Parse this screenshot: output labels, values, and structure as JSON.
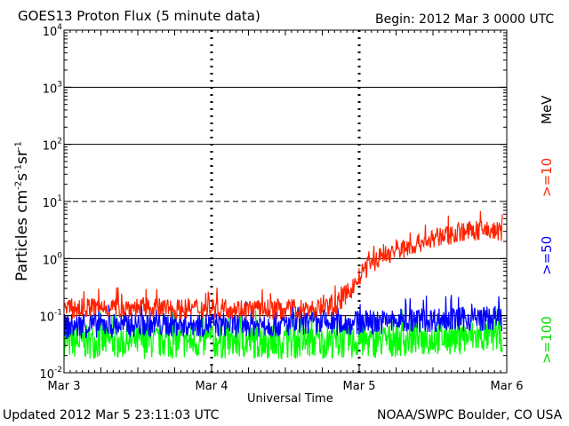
{
  "header": {
    "title": "GOES13 Proton Flux (5 minute data)",
    "begin": "Begin: 2012 Mar 3 0000 UTC"
  },
  "footer": {
    "updated": "Updated 2012 Mar  5 23:11:03 UTC",
    "credit": "NOAA/SWPC Boulder, CO USA"
  },
  "chart_data": {
    "type": "line",
    "xlabel": "Universal Time",
    "ylabel_parts": [
      "Particles cm",
      "-2",
      "s",
      "-1",
      "sr",
      "-1"
    ],
    "x_ticks": [
      "Mar 3",
      "Mar 4",
      "Mar 5",
      "Mar 6"
    ],
    "y_ticks": [
      {
        "base": "10",
        "exp": "-2"
      },
      {
        "base": "10",
        "exp": "-1"
      },
      {
        "base": "10",
        "exp": "0"
      },
      {
        "base": "10",
        "exp": "1"
      },
      {
        "base": "10",
        "exp": "2"
      },
      {
        "base": "10",
        "exp": "3"
      },
      {
        "base": "10",
        "exp": "4"
      }
    ],
    "y_scale": "log",
    "ylim": [
      0.01,
      10000
    ],
    "xlim_days": [
      0,
      3
    ],
    "legend": [
      {
        "label": ">=10",
        "unit": "MeV",
        "color": "#ff2200"
      },
      {
        "label": ">=50",
        "color": "#0000ff"
      },
      {
        "label": ">=100",
        "color": "#00ff00"
      }
    ],
    "series": [
      {
        "name": ">=10 MeV",
        "color": "#ff2200",
        "x": [
          0,
          0.25,
          0.5,
          0.75,
          1.0,
          1.25,
          1.5,
          1.7,
          1.85,
          1.95,
          2.05,
          2.15,
          2.3,
          2.5,
          2.7,
          2.85,
          2.97
        ],
        "y": [
          0.13,
          0.14,
          0.14,
          0.13,
          0.14,
          0.13,
          0.13,
          0.13,
          0.16,
          0.3,
          0.7,
          1.1,
          1.5,
          2.2,
          3.0,
          3.1,
          3.0
        ]
      },
      {
        "name": ">=50 MeV",
        "color": "#0000ff",
        "x": [
          0,
          0.5,
          1.0,
          1.5,
          2.0,
          2.5,
          2.97
        ],
        "y": [
          0.065,
          0.07,
          0.07,
          0.07,
          0.075,
          0.085,
          0.09
        ]
      },
      {
        "name": ">=100 MeV",
        "color": "#00ff00",
        "x": [
          0,
          0.5,
          1.0,
          1.5,
          2.0,
          2.5,
          2.97
        ],
        "y": [
          0.035,
          0.035,
          0.035,
          0.035,
          0.035,
          0.04,
          0.045
        ]
      }
    ],
    "thresholds": [
      {
        "value": 10,
        "style": "dashed"
      },
      {
        "value": 0.1,
        "style": "solid"
      }
    ],
    "grid": true
  }
}
